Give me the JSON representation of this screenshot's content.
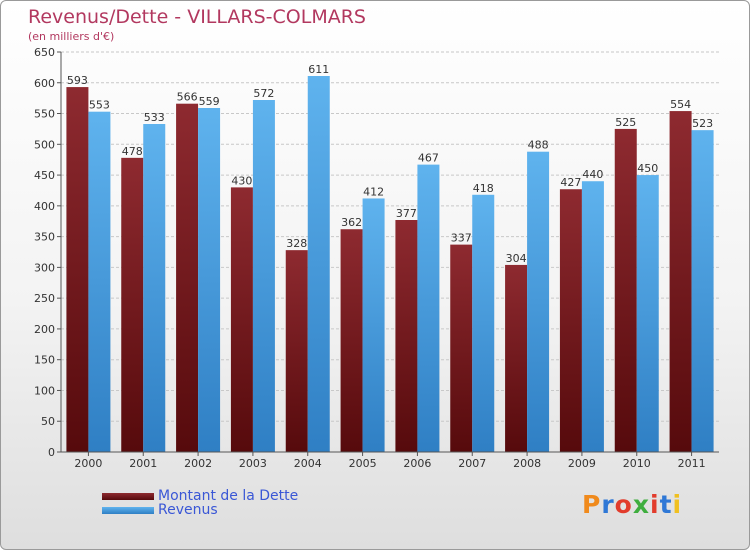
{
  "chart_data": {
    "type": "bar",
    "title": "Revenus/Dette - VILLARS-COLMARS",
    "subtitle": "(en milliers d'€)",
    "categories": [
      "2000",
      "2001",
      "2002",
      "2003",
      "2004",
      "2005",
      "2006",
      "2007",
      "2008",
      "2009",
      "2010",
      "2011"
    ],
    "series": [
      {
        "name": "Montant de la Dette",
        "color": "#7a1418",
        "values": [
          593,
          478,
          566,
          430,
          328,
          362,
          377,
          337,
          304,
          427,
          525,
          554
        ]
      },
      {
        "name": "Revenus",
        "color": "#4fa6e6",
        "values": [
          553,
          533,
          559,
          572,
          611,
          412,
          467,
          418,
          488,
          440,
          450,
          523
        ]
      }
    ],
    "ylim": [
      0,
      650
    ],
    "yticks": [
      0,
      50,
      100,
      150,
      200,
      250,
      300,
      350,
      400,
      450,
      500,
      550,
      600,
      650
    ],
    "grid": true,
    "legend_position": "bottom-left"
  },
  "logo": {
    "text": "Proxiti",
    "colors": [
      "#f08a1c",
      "#2f78d6",
      "#e23c2c",
      "#3fae3f",
      "#e23c2c",
      "#2f78d6",
      "#f0c020"
    ]
  }
}
